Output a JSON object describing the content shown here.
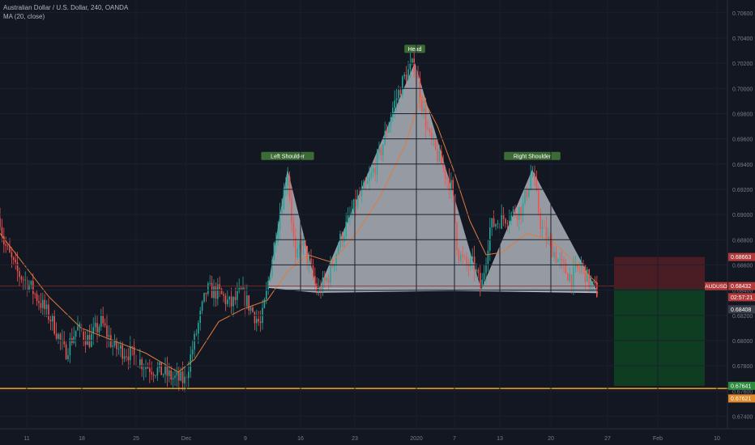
{
  "legend": {
    "symbol_line": "Australian Dollar / U.S. Dollar, 240, OANDA",
    "indicator_line": "MA (20, close)"
  },
  "colors": {
    "background": "#131722",
    "up": "#26a69a",
    "down": "#ef5350",
    "ma": "#e07a3a",
    "pattern_fill": "#c9ced6",
    "support": "#f5a623",
    "current_price_line": "#8b2a2a",
    "stop_zone": "#4a1c24",
    "target_zone": "#0f3d22",
    "label_bg": "#3d6b35"
  },
  "chart_data": {
    "type": "candlestick",
    "symbol": "AUDUSD",
    "timeframe": "240",
    "y_axis": {
      "min": 0.673,
      "max": 0.7065,
      "ticks": [
        "0.67400",
        "0.67600",
        "0.67800",
        "0.68000",
        "0.68200",
        "0.68400",
        "0.68600",
        "0.68800",
        "0.69000",
        "0.69200",
        "0.69400",
        "0.69600",
        "0.69800",
        "0.70000",
        "0.70200",
        "0.70400",
        "0.70600"
      ]
    },
    "x_axis": {
      "ticks": [
        "11",
        "18",
        "25",
        "Dec",
        "9",
        "16",
        "23",
        "2020",
        "7",
        "13",
        "20",
        "27",
        "Feb",
        "10"
      ]
    },
    "price_series": [
      [
        0,
        0.6897
      ],
      [
        4,
        0.688
      ],
      [
        10,
        0.687
      ],
      [
        20,
        0.6855
      ],
      [
        35,
        0.6845
      ],
      [
        50,
        0.683
      ],
      [
        65,
        0.6815
      ],
      [
        80,
        0.679
      ],
      [
        95,
        0.681
      ],
      [
        110,
        0.68
      ],
      [
        125,
        0.6815
      ],
      [
        140,
        0.6795
      ],
      [
        160,
        0.679
      ],
      [
        180,
        0.678
      ],
      [
        200,
        0.6775
      ],
      [
        215,
        0.677
      ],
      [
        228,
        0.6768
      ],
      [
        240,
        0.68
      ],
      [
        255,
        0.684
      ],
      [
        270,
        0.6838
      ],
      [
        285,
        0.6828
      ],
      [
        298,
        0.6838
      ],
      [
        310,
        0.6825
      ],
      [
        322,
        0.6812
      ],
      [
        330,
        0.6842
      ],
      [
        342,
        0.689
      ],
      [
        355,
        0.6935
      ],
      [
        365,
        0.686
      ],
      [
        372,
        0.688
      ],
      [
        382,
        0.686
      ],
      [
        392,
        0.6838
      ],
      [
        405,
        0.685
      ],
      [
        420,
        0.688
      ],
      [
        440,
        0.691
      ],
      [
        455,
        0.6925
      ],
      [
        470,
        0.695
      ],
      [
        485,
        0.6985
      ],
      [
        500,
        0.701
      ],
      [
        512,
        0.702
      ],
      [
        520,
        0.699
      ],
      [
        530,
        0.696
      ],
      [
        545,
        0.694
      ],
      [
        558,
        0.692
      ],
      [
        565,
        0.687
      ],
      [
        575,
        0.686
      ],
      [
        585,
        0.686
      ],
      [
        594,
        0.684
      ],
      [
        605,
        0.689
      ],
      [
        615,
        0.6895
      ],
      [
        630,
        0.69
      ],
      [
        645,
        0.6905
      ],
      [
        657,
        0.6935
      ],
      [
        668,
        0.689
      ],
      [
        680,
        0.6875
      ],
      [
        692,
        0.686
      ],
      [
        705,
        0.685
      ],
      [
        718,
        0.686
      ],
      [
        728,
        0.6845
      ],
      [
        738,
        0.6838
      ]
    ],
    "ma_series": [
      [
        0,
        0.6885
      ],
      [
        30,
        0.686
      ],
      [
        60,
        0.6835
      ],
      [
        100,
        0.681
      ],
      [
        140,
        0.68
      ],
      [
        180,
        0.679
      ],
      [
        220,
        0.6775
      ],
      [
        240,
        0.6785
      ],
      [
        270,
        0.6815
      ],
      [
        300,
        0.6825
      ],
      [
        330,
        0.6832
      ],
      [
        355,
        0.6855
      ],
      [
        380,
        0.6868
      ],
      [
        410,
        0.6862
      ],
      [
        440,
        0.6885
      ],
      [
        470,
        0.6915
      ],
      [
        500,
        0.6955
      ],
      [
        520,
        0.6995
      ],
      [
        540,
        0.697
      ],
      [
        560,
        0.6935
      ],
      [
        580,
        0.6895
      ],
      [
        600,
        0.6868
      ],
      [
        620,
        0.687
      ],
      [
        650,
        0.6885
      ],
      [
        680,
        0.688
      ],
      [
        710,
        0.6862
      ],
      [
        738,
        0.6845
      ]
    ],
    "pattern": {
      "left_shoulder": [
        [
          331,
          0.6842
        ],
        [
          355,
          0.6935
        ],
        [
          392,
          0.6838
        ]
      ],
      "head": [
        [
          392,
          0.6838
        ],
        [
          512,
          0.702
        ],
        [
          594,
          0.684
        ]
      ],
      "right_shoulder": [
        [
          594,
          0.684
        ],
        [
          657,
          0.6935
        ],
        [
          738,
          0.6838
        ]
      ],
      "neckline": [
        [
          331,
          0.6842
        ],
        [
          738,
          0.6838
        ]
      ]
    },
    "annotations": [
      {
        "text": "Left Shoulder",
        "x": 355,
        "price": 0.694
      },
      {
        "text": "Head",
        "x": 512,
        "price": 0.7025
      },
      {
        "text": "Right Shoulder",
        "x": 657,
        "price": 0.694
      }
    ],
    "support_level": {
      "price": 0.6762
    },
    "current_price": {
      "price": 0.68432
    },
    "position": {
      "x_start": 758,
      "x_end": 870,
      "entry": 0.68408,
      "stop": 0.68663,
      "target": 0.67641
    },
    "price_labels": [
      {
        "text": "0.68663",
        "price": 0.68663,
        "bg": "#b23a3a"
      },
      {
        "text": "AUDUSD",
        "price": 0.68432,
        "bg": "#b23a3a",
        "side": "left"
      },
      {
        "text": "0.68432",
        "price": 0.68432,
        "bg": "#b23a3a"
      },
      {
        "text": "02:57:21",
        "price": 0.68344,
        "bg": "#b23a3a"
      },
      {
        "text": "0.68408",
        "price": 0.68248,
        "bg": "#3a3e48"
      },
      {
        "text": "0.67641",
        "price": 0.67641,
        "bg": "#2e8b3e"
      },
      {
        "text": "0.67621",
        "price": 0.67541,
        "bg": "#e08a2a"
      }
    ]
  }
}
